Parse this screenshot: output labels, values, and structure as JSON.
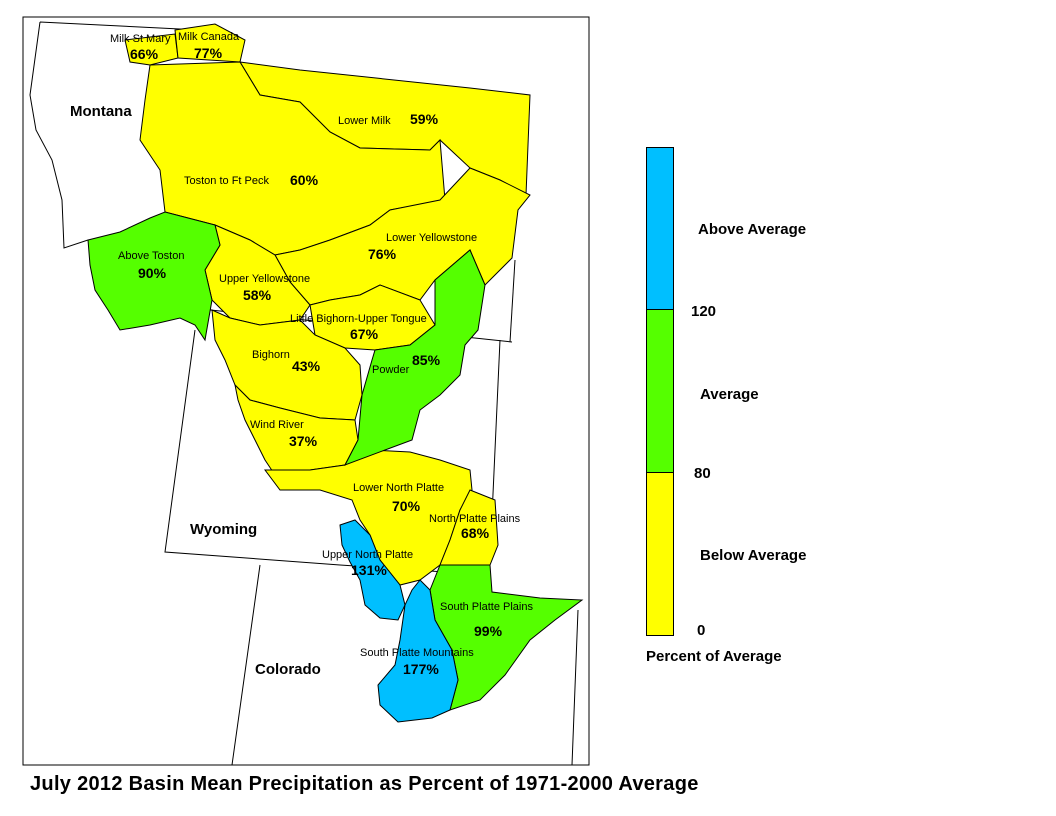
{
  "title": "July 2012 Basin Mean Precipitation as Percent of 1971-2000 Average",
  "colors": {
    "above": "#00BFFF",
    "average": "#55FF00",
    "below": "#FFFF00",
    "outline": "#000000"
  },
  "states": {
    "montana": "Montana",
    "wyoming": "Wyoming",
    "colorado": "Colorado"
  },
  "basins": {
    "milk_st_mary": {
      "name": "Milk St Mary",
      "pct": "66%",
      "category": "below"
    },
    "milk_canada": {
      "name": "Milk Canada",
      "pct": "77%",
      "category": "below"
    },
    "lower_milk": {
      "name": "Lower Milk",
      "pct": "59%",
      "category": "below"
    },
    "toston_ft_peck": {
      "name": "Toston to Ft Peck",
      "pct": "60%",
      "category": "below"
    },
    "above_toston": {
      "name": "Above Toston",
      "pct": "90%",
      "category": "average"
    },
    "lower_yellowstone": {
      "name": "Lower Yellowstone",
      "pct": "76%",
      "category": "below"
    },
    "upper_yellowstone": {
      "name": "Upper Yellowstone",
      "pct": "58%",
      "category": "below"
    },
    "little_bighorn": {
      "name": "Little Bighorn-Upper Tongue",
      "pct": "67%",
      "category": "below"
    },
    "bighorn": {
      "name": "Bighorn",
      "pct": "43%",
      "category": "below"
    },
    "powder": {
      "name": "Powder",
      "pct": "85%",
      "category": "average"
    },
    "wind_river": {
      "name": "Wind River",
      "pct": "37%",
      "category": "below"
    },
    "lower_north_platte": {
      "name": "Lower North Platte",
      "pct": "70%",
      "category": "below"
    },
    "north_platte_plains": {
      "name": "North Platte Plains",
      "pct": "68%",
      "category": "below"
    },
    "upper_north_platte": {
      "name": "Upper North Platte",
      "pct": "131%",
      "category": "above"
    },
    "south_platte_plains": {
      "name": "South Platte Plains",
      "pct": "99%",
      "category": "average"
    },
    "south_platte_mountains": {
      "name": "South Platte Mountains",
      "pct": "177%",
      "category": "above"
    }
  },
  "legend": {
    "above_label": "Above Average",
    "average_label": "Average",
    "below_label": "Below Average",
    "tick_120": "120",
    "tick_80": "80",
    "tick_0": "0",
    "caption": "Percent of Average"
  }
}
